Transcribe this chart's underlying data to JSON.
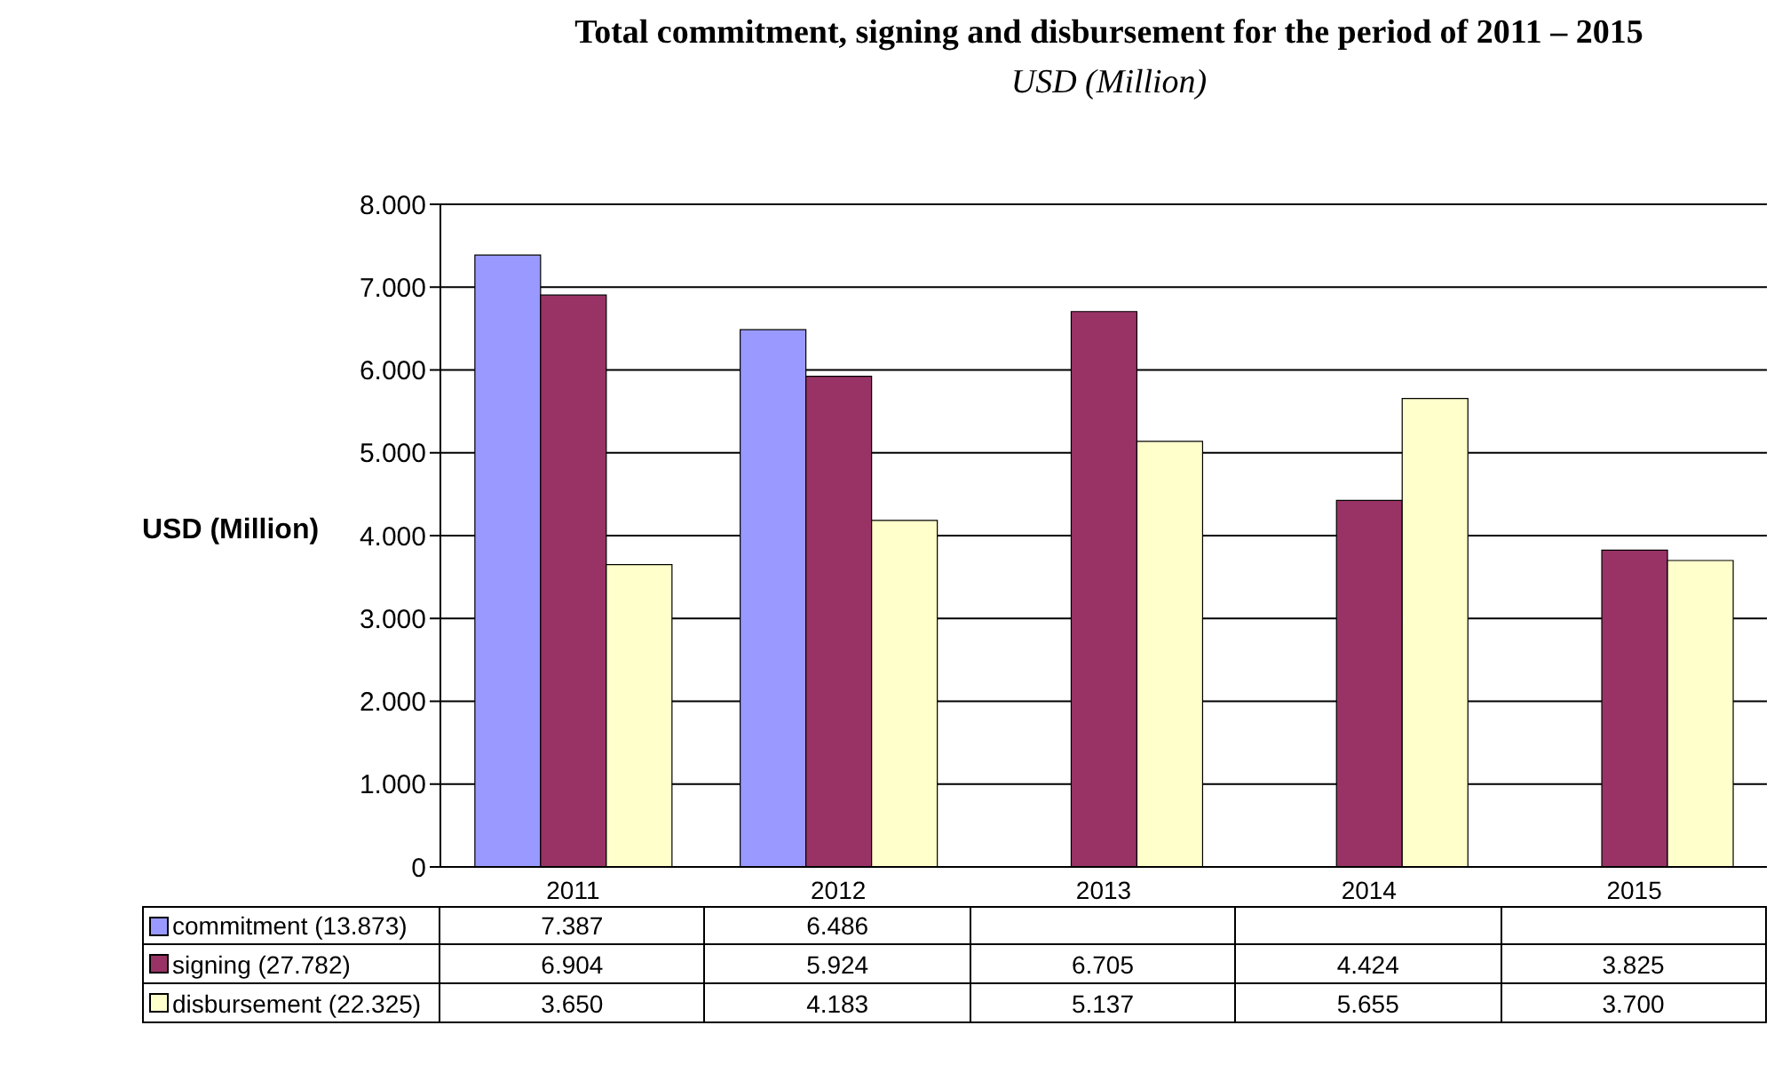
{
  "chart_data": {
    "type": "bar",
    "title": "Total commitment, signing and disbursement for the period of 2011 – 2015",
    "subtitle": "USD (Million)",
    "ylabel": "USD (Million)",
    "categories": [
      "2011",
      "2012",
      "2013",
      "2014",
      "2015"
    ],
    "series": [
      {
        "name": "commitment (13.873)",
        "color": "#9999ff",
        "values": [
          7387,
          6486,
          null,
          null,
          null
        ],
        "value_labels": [
          "7.387",
          "6.486",
          null,
          null,
          null
        ]
      },
      {
        "name": "signing (27.782)",
        "color": "#993366",
        "values": [
          6904,
          5924,
          6705,
          4424,
          3825
        ],
        "value_labels": [
          "6.904",
          "5.924",
          "6.705",
          "4.424",
          "3.825"
        ]
      },
      {
        "name": "disbursement (22.325)",
        "color": "#ffffcc",
        "values": [
          3650,
          4183,
          5137,
          5655,
          3700
        ],
        "value_labels": [
          "3.650",
          "4.183",
          "5.137",
          "5.655",
          "3.700"
        ]
      }
    ],
    "ylim": [
      0,
      8000
    ],
    "yticks": [
      {
        "value": 0,
        "label": "0"
      },
      {
        "value": 1000,
        "label": "1.000"
      },
      {
        "value": 2000,
        "label": "2.000"
      },
      {
        "value": 3000,
        "label": "3.000"
      },
      {
        "value": 4000,
        "label": "4.000"
      },
      {
        "value": 5000,
        "label": "5.000"
      },
      {
        "value": 6000,
        "label": "6.000"
      },
      {
        "value": 7000,
        "label": "7.000"
      },
      {
        "value": 8000,
        "label": "8.000"
      }
    ],
    "grid": "y",
    "legend": "bottom"
  }
}
